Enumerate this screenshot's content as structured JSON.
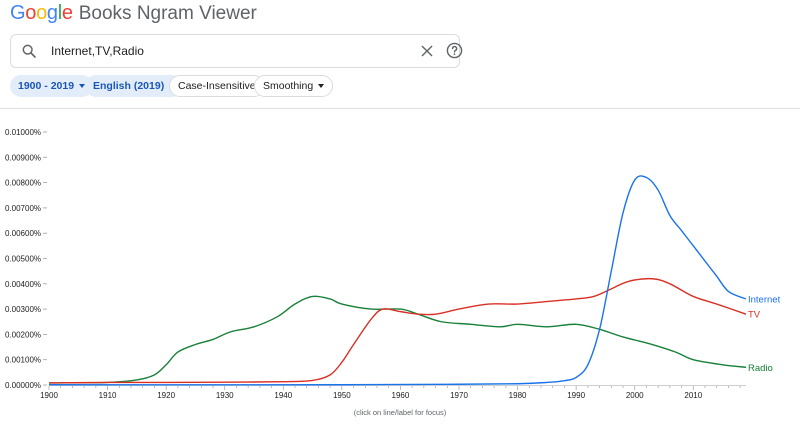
{
  "header": {
    "logo_google": "Google",
    "logo_rest": "Books Ngram Viewer",
    "logo_colors": [
      "#4285f4",
      "#ea4335",
      "#fbbc05",
      "#4285f4",
      "#34a853",
      "#ea4335"
    ]
  },
  "search": {
    "value": "Internet,TV,Radio",
    "search_icon": "search-icon",
    "clear_icon": "close-icon",
    "help_icon": "help-circle-icon"
  },
  "filters": {
    "year_range": "1900 - 2019",
    "corpus": "English (2019)",
    "case": "Case-Insensitive",
    "smoothing": "Smoothing"
  },
  "chart_data": {
    "type": "line",
    "xlim": [
      1900,
      2019
    ],
    "ylim": [
      0,
      0.01
    ],
    "y_tick_labels": [
      "0.00000%",
      "0.00100%",
      "0.00200%",
      "0.00300%",
      "0.00400%",
      "0.00500%",
      "0.00600%",
      "0.00700%",
      "0.00800%",
      "0.00900%",
      "0.01000%"
    ],
    "x_tick_labels": [
      "1900",
      "1910",
      "1920",
      "1930",
      "1940",
      "1950",
      "1960",
      "1970",
      "1980",
      "1990",
      "2000",
      "2010"
    ],
    "grid": false,
    "series": [
      {
        "name": "Internet",
        "color": "#1a73e8",
        "points": [
          [
            1900,
            1e-05
          ],
          [
            1950,
            1e-05
          ],
          [
            1970,
            3e-05
          ],
          [
            1980,
            5e-05
          ],
          [
            1985,
            0.0001
          ],
          [
            1988,
            0.00017
          ],
          [
            1990,
            0.0003
          ],
          [
            1992,
            0.0008
          ],
          [
            1994,
            0.0022
          ],
          [
            1996,
            0.0045
          ],
          [
            1998,
            0.0068
          ],
          [
            2000,
            0.0081
          ],
          [
            2002,
            0.0082
          ],
          [
            2004,
            0.0077
          ],
          [
            2006,
            0.0067
          ],
          [
            2008,
            0.0061
          ],
          [
            2010,
            0.0055
          ],
          [
            2012,
            0.0049
          ],
          [
            2014,
            0.0043
          ],
          [
            2016,
            0.0037
          ],
          [
            2019,
            0.0034
          ]
        ]
      },
      {
        "name": "TV",
        "color": "#d93025",
        "points": [
          [
            1900,
            8e-05
          ],
          [
            1910,
            0.0001
          ],
          [
            1920,
            0.0001
          ],
          [
            1930,
            0.00011
          ],
          [
            1940,
            0.00013
          ],
          [
            1945,
            0.00018
          ],
          [
            1948,
            0.0004
          ],
          [
            1950,
            0.0009
          ],
          [
            1952,
            0.0016
          ],
          [
            1955,
            0.0026
          ],
          [
            1957,
            0.003
          ],
          [
            1960,
            0.0029
          ],
          [
            1963,
            0.0028
          ],
          [
            1966,
            0.0028
          ],
          [
            1970,
            0.003
          ],
          [
            1975,
            0.0032
          ],
          [
            1980,
            0.0032
          ],
          [
            1985,
            0.0033
          ],
          [
            1990,
            0.0034
          ],
          [
            1993,
            0.0035
          ],
          [
            1996,
            0.0038
          ],
          [
            1999,
            0.0041
          ],
          [
            2003,
            0.0042
          ],
          [
            2006,
            0.004
          ],
          [
            2010,
            0.0035
          ],
          [
            2014,
            0.0032
          ],
          [
            2019,
            0.0028
          ]
        ]
      },
      {
        "name": "Radio",
        "color": "#188038",
        "points": [
          [
            1900,
            8e-05
          ],
          [
            1905,
            9e-05
          ],
          [
            1910,
            0.0001
          ],
          [
            1915,
            0.0002
          ],
          [
            1918,
            0.0004
          ],
          [
            1920,
            0.0008
          ],
          [
            1922,
            0.0013
          ],
          [
            1925,
            0.0016
          ],
          [
            1928,
            0.0018
          ],
          [
            1931,
            0.0021
          ],
          [
            1935,
            0.0023
          ],
          [
            1939,
            0.0027
          ],
          [
            1942,
            0.0032
          ],
          [
            1945,
            0.0035
          ],
          [
            1948,
            0.0034
          ],
          [
            1950,
            0.0032
          ],
          [
            1955,
            0.003
          ],
          [
            1960,
            0.003
          ],
          [
            1963,
            0.0028
          ],
          [
            1967,
            0.0025
          ],
          [
            1972,
            0.0024
          ],
          [
            1977,
            0.0023
          ],
          [
            1980,
            0.0024
          ],
          [
            1985,
            0.0023
          ],
          [
            1990,
            0.0024
          ],
          [
            1994,
            0.0022
          ],
          [
            1998,
            0.0019
          ],
          [
            2003,
            0.0016
          ],
          [
            2007,
            0.0013
          ],
          [
            2010,
            0.001
          ],
          [
            2015,
            0.0008
          ],
          [
            2019,
            0.0007
          ]
        ]
      }
    ]
  },
  "footnote": "(click on line/label for focus)"
}
